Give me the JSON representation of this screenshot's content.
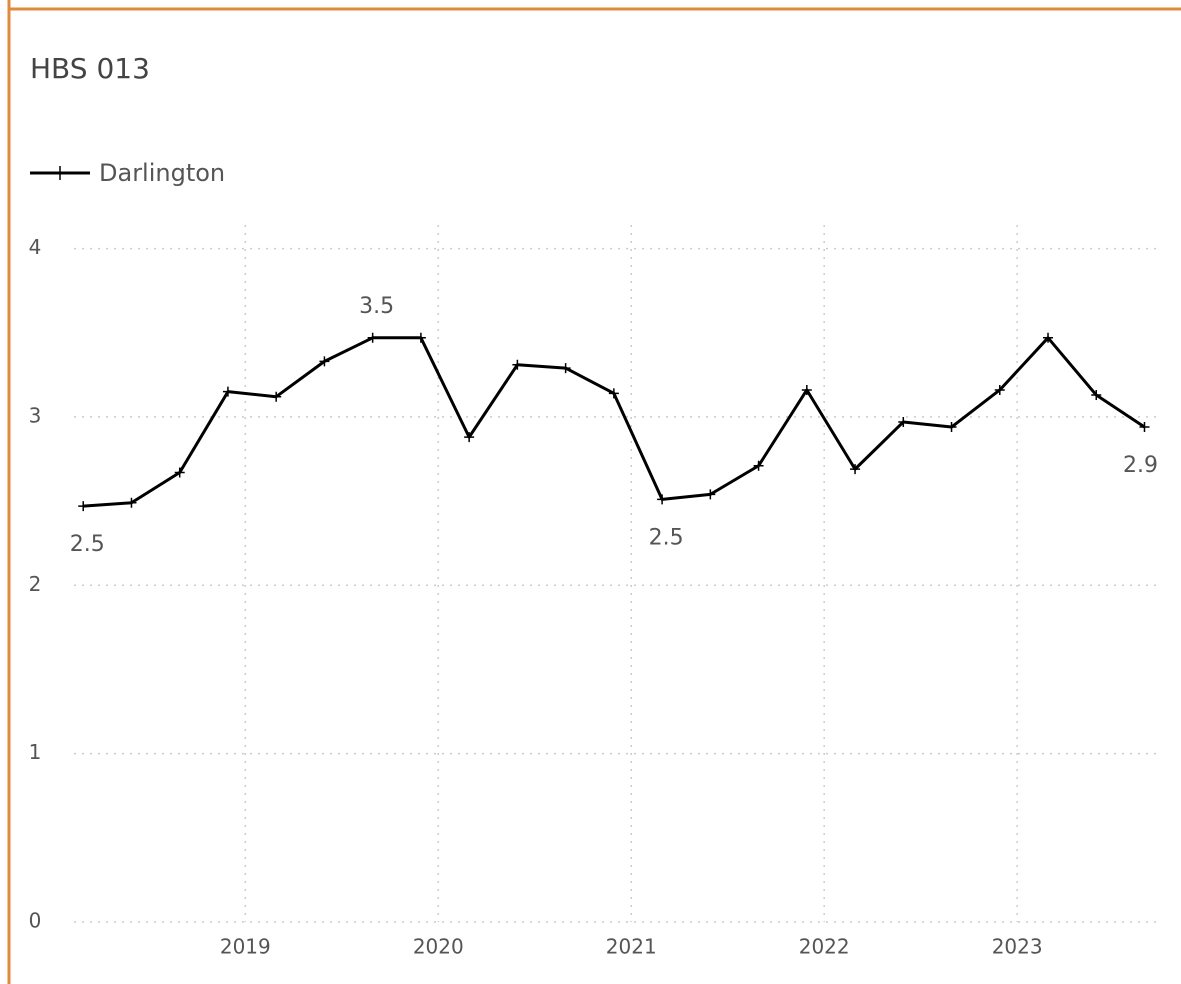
{
  "chart_data": {
    "type": "line",
    "title": "HBS 013",
    "x": [
      2018.16,
      2018.41,
      2018.66,
      2018.91,
      2019.16,
      2019.41,
      2019.66,
      2019.91,
      2020.16,
      2020.41,
      2020.66,
      2020.91,
      2021.16,
      2021.41,
      2021.66,
      2021.91,
      2022.16,
      2022.41,
      2022.66,
      2022.91,
      2023.16,
      2023.41,
      2023.66
    ],
    "series": [
      {
        "name": "Darlington",
        "color": "#000000",
        "values": [
          2.47,
          2.49,
          2.67,
          3.15,
          3.12,
          3.33,
          3.47,
          3.47,
          2.88,
          3.31,
          3.29,
          3.14,
          2.51,
          2.54,
          2.71,
          3.16,
          2.69,
          2.97,
          2.94,
          3.16,
          3.47,
          3.13,
          2.94
        ],
        "value_labels": [
          "2.5",
          null,
          null,
          null,
          null,
          null,
          "3.5",
          null,
          null,
          null,
          null,
          null,
          "2.5",
          null,
          null,
          null,
          null,
          null,
          null,
          null,
          null,
          null,
          "2.9"
        ]
      }
    ],
    "xlim": [
      2018.05,
      2023.73
    ],
    "xticks": [
      2019,
      2020,
      2021,
      2022,
      2023
    ],
    "ylim": [
      0,
      4.14
    ],
    "yticks": [
      0,
      1,
      2,
      3,
      4
    ],
    "grid": true,
    "legend": "top-left"
  }
}
